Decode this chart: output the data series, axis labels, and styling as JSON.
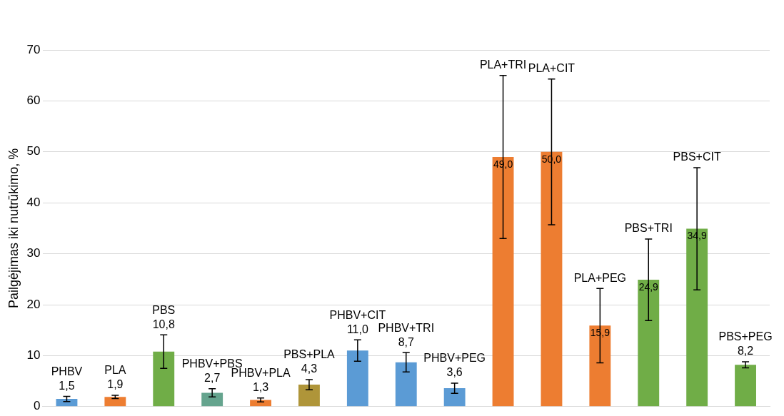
{
  "chart_data": {
    "type": "bar",
    "ylabel": "Pailgėjimas iki nutrūkimo, %",
    "categories": [
      "PHBV",
      "PLA",
      "PBS",
      "PHBV+PBS",
      "PHBV+PLA",
      "PBS+PLA",
      "PHBV+CIT",
      "PHBV+TRI",
      "PHBV+PEG",
      "PLA+TRI",
      "PLA+CIT",
      "PLA+PEG",
      "PBS+TRI",
      "PBS+CIT",
      "PBS+PEG"
    ],
    "values": [
      1.5,
      1.9,
      10.8,
      2.7,
      1.3,
      4.3,
      11.0,
      8.7,
      3.6,
      49.0,
      50.0,
      15.9,
      24.9,
      34.9,
      8.2
    ],
    "value_labels": [
      "1,5",
      "1,9",
      "10,8",
      "2,7",
      "1,3",
      "4,3",
      "11,0",
      "8,7",
      "3,6",
      "49,0",
      "50,0",
      "15,9",
      "24,9",
      "34,9",
      "8,2"
    ],
    "errors": [
      0.5,
      0.3,
      3.3,
      0.8,
      0.4,
      1.0,
      2.1,
      1.9,
      1.0,
      16,
      14.3,
      7.3,
      8,
      12,
      0.6
    ],
    "colors": [
      "#5b9bd5",
      "#ed7d31",
      "#70ad47",
      "#65a48e",
      "#ed7d31",
      "#af9539",
      "#5b9bd5",
      "#5b9bd5",
      "#5b9bd5",
      "#ed7d31",
      "#ed7d31",
      "#ed7d31",
      "#70ad47",
      "#70ad47",
      "#70ad47"
    ],
    "ylim": [
      0,
      70
    ],
    "yticks": [
      0,
      10,
      20,
      30,
      40,
      50,
      60,
      70
    ],
    "grid": "y",
    "tick_labels": "y",
    "legend": false
  }
}
